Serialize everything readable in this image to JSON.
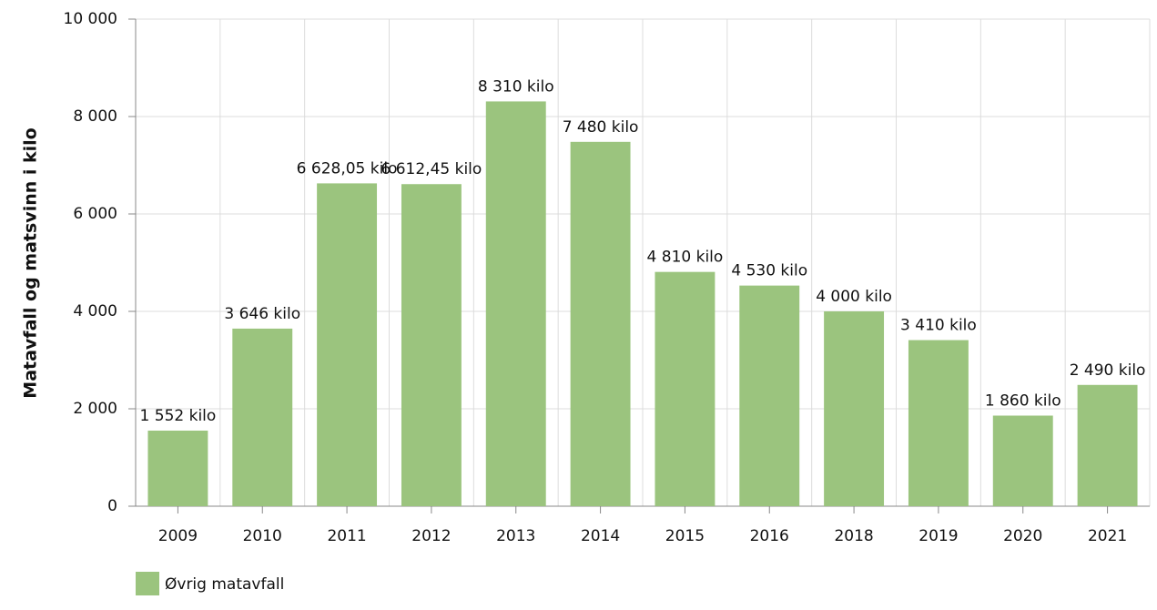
{
  "chart_data": {
    "type": "bar",
    "y_label": "Matavfall og matsvinn i kilo",
    "categories": [
      "2009",
      "2010",
      "2011",
      "2012",
      "2013",
      "2014",
      "2015",
      "2016",
      "2018",
      "2019",
      "2020",
      "2021"
    ],
    "series": [
      {
        "name": "Øvrig matavfall",
        "color": "#9bc47e",
        "values": [
          1552,
          3646,
          6628.05,
          6612.45,
          8310,
          7480,
          4810,
          4530,
          4000,
          3410,
          1860,
          2490
        ],
        "value_labels": [
          "1 552 kilo",
          "3 646 kilo",
          "6 628,05 kilo",
          "6 612,45 kilo",
          "8 310 kilo",
          "7 480 kilo",
          "4 810 kilo",
          "4 530 kilo",
          "4 000 kilo",
          "3 410 kilo",
          "1 860 kilo",
          "2 490 kilo"
        ]
      }
    ],
    "ylim": [
      0,
      10000
    ],
    "yticks": [
      0,
      {
        "value": 2000,
        "label": "2 000"
      },
      {
        "value": 4000,
        "label": "4 000"
      },
      {
        "value": 6000,
        "label": "6 000"
      },
      {
        "value": 8000,
        "label": "8 000"
      },
      {
        "value": 10000,
        "label": "10 000"
      }
    ],
    "grid": true
  }
}
